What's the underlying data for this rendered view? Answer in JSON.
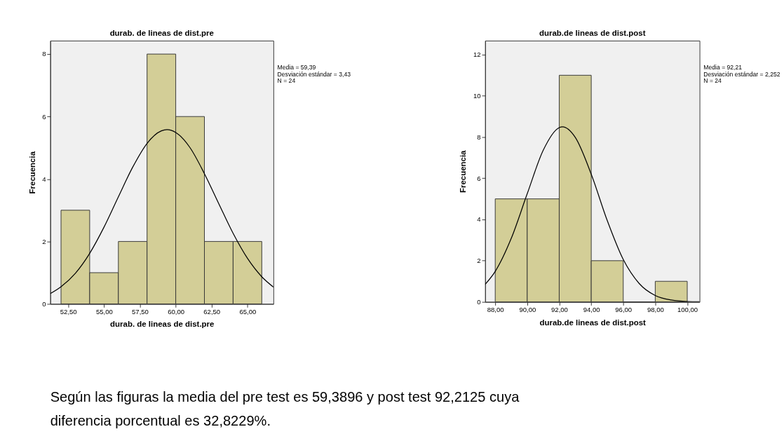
{
  "chart_data": [
    {
      "type": "histogram",
      "title": "durab. de lineas de dist.pre",
      "xlabel": "durab. de lineas de dist.pre",
      "ylabel": "Frecuencia",
      "bins": [
        52,
        54,
        56,
        58,
        60,
        62,
        64,
        66
      ],
      "values": [
        3,
        1,
        2,
        8,
        6,
        2,
        2
      ],
      "color": "#d3ce97",
      "series": [
        {
          "type": "line",
          "color": "#000000",
          "x": [
            51.25,
            52,
            53,
            54,
            55,
            56,
            57,
            58,
            59,
            59.39,
            60,
            61,
            62,
            63,
            64,
            65,
            66,
            66.81
          ],
          "values": [
            0.33,
            0.55,
            0.98,
            1.62,
            2.46,
            3.43,
            4.38,
            5.14,
            5.54,
            5.58,
            5.49,
            5.0,
            4.17,
            3.21,
            2.26,
            1.46,
            0.87,
            0.54
          ]
        }
      ],
      "xlim": [
        51.25,
        66.81
      ],
      "ylim": [
        0,
        8.43
      ],
      "xticks": [
        {
          "value": 52.5,
          "label": "52,50"
        },
        {
          "value": 55,
          "label": "55,00"
        },
        {
          "value": 57.5,
          "label": "57,50"
        },
        {
          "value": 60,
          "label": "60,00"
        },
        {
          "value": 62.5,
          "label": "62,50"
        },
        {
          "value": 65,
          "label": "65,00"
        }
      ],
      "yticks": [
        0,
        2,
        4,
        6,
        8
      ],
      "grid": false,
      "annotations": [
        "Media = 59,39",
        "Desviación estándar = 3,43",
        "N = 24"
      ]
    },
    {
      "type": "histogram",
      "title": "durab.de lineas de dist.post",
      "xlabel": "durab.de lineas de dist.post",
      "ylabel": "Frecuencia",
      "bins": [
        88,
        90,
        92,
        94,
        96,
        98,
        100
      ],
      "values": [
        5,
        5,
        11,
        2,
        0,
        1
      ],
      "color": "#d3ce97",
      "series": [
        {
          "type": "line",
          "color": "#000000",
          "x": [
            87.37,
            88,
            89,
            90,
            91,
            92,
            92.21,
            93,
            94,
            95,
            96,
            97,
            98,
            99,
            100,
            100.77
          ],
          "values": [
            0.85,
            1.48,
            3.08,
            5.25,
            7.36,
            8.46,
            8.5,
            7.99,
            6.2,
            3.95,
            2.06,
            0.89,
            0.31,
            0.09,
            0.02,
            0.01
          ]
        }
      ],
      "xlim": [
        87.37,
        100.77
      ],
      "ylim": [
        0,
        12.68
      ],
      "xticks": [
        {
          "value": 88,
          "label": "88,00"
        },
        {
          "value": 90,
          "label": "90,00"
        },
        {
          "value": 92,
          "label": "92,00"
        },
        {
          "value": 94,
          "label": "94,00"
        },
        {
          "value": 96,
          "label": "96,00"
        },
        {
          "value": 98,
          "label": "98,00"
        },
        {
          "value": 100,
          "label": "100,00"
        }
      ],
      "yticks": [
        0,
        2,
        4,
        6,
        8,
        10,
        12
      ],
      "grid": false,
      "annotations": [
        "Media = 92,21",
        "Desviación estándar = 2,252",
        "N = 24"
      ]
    },
    {
      "type": "other",
      "annotations": [
        "Según las figuras la media del pre test  es 59,3896 y post test 92,2125 cuya",
        "diferencia porcentual es  32,8229%."
      ]
    }
  ]
}
